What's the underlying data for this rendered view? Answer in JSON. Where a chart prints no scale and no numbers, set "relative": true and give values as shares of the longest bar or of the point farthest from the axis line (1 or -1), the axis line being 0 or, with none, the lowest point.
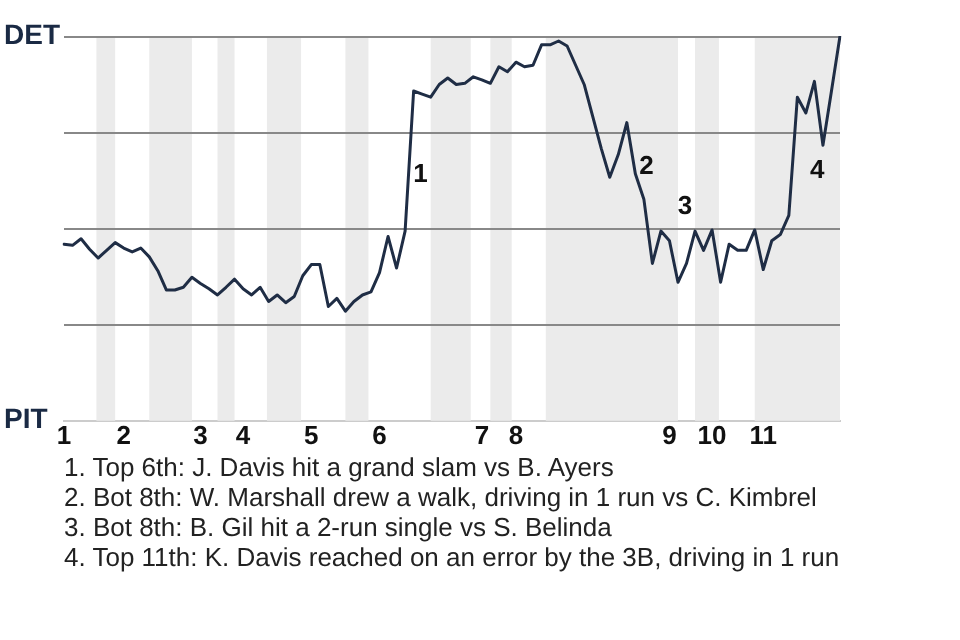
{
  "chart_data": {
    "type": "line",
    "relative": true,
    "categories": [
      "1",
      null,
      null,
      null,
      null,
      null,
      null,
      "2",
      null,
      null,
      null,
      null,
      null,
      null,
      null,
      null,
      "3",
      null,
      null,
      null,
      null,
      "4",
      null,
      null,
      null,
      null,
      null,
      null,
      null,
      "5",
      null,
      null,
      null,
      null,
      null,
      null,
      null,
      "6",
      null,
      null,
      null,
      null,
      null,
      null,
      null,
      null,
      null,
      null,
      null,
      "7",
      null,
      null,
      null,
      "8",
      null,
      null,
      null,
      null,
      null,
      null,
      null,
      null,
      null,
      null,
      null,
      null,
      null,
      null,
      null,
      null,
      null,
      "9",
      null,
      null,
      null,
      null,
      "10",
      null,
      null,
      null,
      null,
      null,
      "11",
      null,
      null,
      null,
      null,
      null,
      null,
      null,
      null,
      null
    ],
    "series": [
      {
        "color": "#1f2d45",
        "values": [
          0.459,
          0.456,
          0.473,
          0.446,
          0.423,
          0.443,
          0.463,
          0.449,
          0.439,
          0.449,
          0.426,
          0.39,
          0.34,
          0.34,
          0.347,
          0.373,
          0.357,
          0.343,
          0.327,
          0.347,
          0.368,
          0.343,
          0.327,
          0.347,
          0.31,
          0.327,
          0.307,
          0.323,
          0.377,
          0.406,
          0.406,
          0.297,
          0.318,
          0.285,
          0.31,
          0.327,
          0.335,
          0.385,
          0.479,
          0.397,
          0.493,
          0.857,
          0.849,
          0.841,
          0.874,
          0.891,
          0.874,
          0.877,
          0.894,
          0.886,
          0.877,
          0.92,
          0.907,
          0.932,
          0.92,
          0.924,
          0.977,
          0.977,
          0.987,
          0.974,
          0.924,
          0.874,
          0.791,
          0.708,
          0.633,
          0.692,
          0.775,
          0.642,
          0.576,
          0.409,
          0.493,
          0.468,
          0.36,
          0.409,
          0.493,
          0.443,
          0.496,
          0.36,
          0.459,
          0.443,
          0.443,
          0.496,
          0.393,
          0.468,
          0.484,
          0.534,
          0.841,
          0.8,
          0.882,
          0.716,
          0.857,
          1.0
        ]
      }
    ],
    "grid": "y",
    "marker": "none",
    "line_style": "solid",
    "annotations": [
      "DET",
      "PIT",
      "1",
      "2",
      "3",
      "4",
      "1. Top 6th: J. Davis hit a grand slam vs B. Ayers",
      "2. Bot 8th: W. Marshall drew a walk, driving in 1 run vs C. Kimbrel",
      "3. Bot 8th: B. Gil hit a 2-run single vs S. Belinda",
      "4. Top 11th: K. Davis reached on an error by the 3B, driving in 1 run"
    ]
  }
}
